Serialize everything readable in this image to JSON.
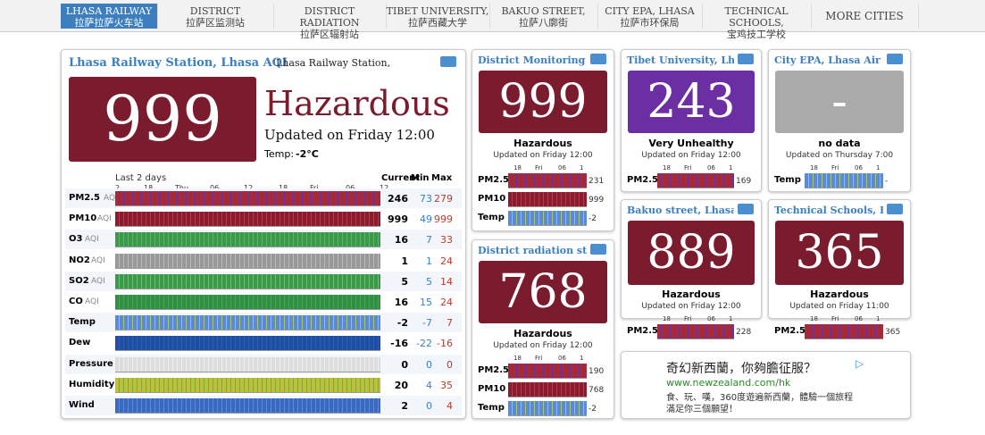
{
  "nav": [
    {
      "line1": "LHASA RAILWAY",
      "line2": "拉萨拉萨火车站"
    },
    {
      "line1": "DISTRICT",
      "line2": "拉萨区监测站"
    },
    {
      "line1": "DISTRICT RADIATION",
      "line2": "拉萨区辐射站"
    },
    {
      "line1": "TIBET UNIVERSITY,",
      "line2": "拉萨西藏大学"
    },
    {
      "line1": "BAKUO STREET,",
      "line2": "拉萨八廓街"
    },
    {
      "line1": "CITY EPA, LHASA",
      "line2": "拉萨市环保局"
    },
    {
      "line1": "TECHNICAL SCHOOLS,",
      "line2": "宝鸡技工学校"
    },
    {
      "line1": "MORE CITIES"
    }
  ],
  "main": {
    "title": "Lhasa Railway Station, Lhasa AQI",
    "subtitle": "Lhasa Railway Station, Lh",
    "aqi": "999",
    "level": "Hazardous",
    "color": "#7b1c2e",
    "updated": "Updated on Friday 12:00",
    "temp_label": "Temp:",
    "temp_value": "-2°C",
    "chart_caption": "Last 2 days",
    "time_labels": [
      "2",
      "18",
      "Thu",
      "06",
      "12",
      "18",
      "Fri",
      "06",
      "12"
    ],
    "columns": [
      "Current",
      "Min",
      "Max"
    ],
    "rows": [
      {
        "name": "PM2.5",
        "unit": "AQI",
        "current": "246",
        "min": "73",
        "max": "279"
      },
      {
        "name": "PM10",
        "unit": "AQI",
        "current": "999",
        "min": "49",
        "max": "999"
      },
      {
        "name": "O3",
        "unit": "AQI",
        "current": "16",
        "min": "7",
        "max": "33"
      },
      {
        "name": "NO2",
        "unit": "AQI",
        "current": "1",
        "min": "1",
        "max": "24"
      },
      {
        "name": "SO2",
        "unit": "AQI",
        "current": "5",
        "min": "5",
        "max": "14"
      },
      {
        "name": "CO",
        "unit": "AQI",
        "current": "16",
        "min": "15",
        "max": "24"
      },
      {
        "name": "Temp",
        "current": "-2",
        "min": "-7",
        "max": "7"
      },
      {
        "name": "Dew",
        "current": "-16",
        "min": "-22",
        "max": "-16"
      },
      {
        "name": "Pressure",
        "current": "0",
        "min": "0",
        "max": "0"
      },
      {
        "name": "Humidity",
        "current": "20",
        "min": "4",
        "max": "35"
      },
      {
        "name": "Wind",
        "current": "2",
        "min": "0",
        "max": "4"
      }
    ]
  },
  "cards": [
    {
      "title": "District Monitoring St",
      "aqi": "999",
      "level": "Hazardous",
      "color": "#7b1c2e",
      "updated": "Updated on Friday 12:00",
      "time_labels": [
        "18",
        "Fri",
        "06",
        "1"
      ],
      "rows": [
        {
          "label": "PM2.5",
          "value": "231"
        },
        {
          "label": "PM10",
          "value": "999"
        },
        {
          "label": "Temp",
          "value": "-2"
        }
      ]
    },
    {
      "title": "District radiation stat",
      "aqi": "768",
      "level": "Hazardous",
      "color": "#7b1c2e",
      "updated": "Updated on Friday 12:00",
      "time_labels": [
        "18",
        "Fri",
        "06",
        "1"
      ],
      "rows": [
        {
          "label": "PM2.5",
          "value": "190"
        },
        {
          "label": "PM10",
          "value": "768"
        },
        {
          "label": "Temp",
          "value": "-2"
        }
      ]
    },
    {
      "title": "Tibet University, Lhas",
      "aqi": "243",
      "level": "Very Unhealthy",
      "color": "#6b2fa3",
      "updated": "Updated on Friday 12:00",
      "time_labels": [
        "18",
        "Fri",
        "06",
        "1"
      ],
      "rows": [
        {
          "label": "PM2.5",
          "value": "169"
        }
      ]
    },
    {
      "title": "City EPA, Lhasa Air Qua",
      "aqi": "-",
      "level": "no data",
      "color": "#aaaaaa",
      "updated": "Updated on Thursday 7:00",
      "time_labels": [
        "18",
        "Fri",
        "06",
        "1"
      ],
      "rows": [
        {
          "label": "Temp",
          "value": "-"
        }
      ]
    },
    {
      "title": "Bakuo street, Lhasa Ai",
      "aqi": "889",
      "level": "Hazardous",
      "color": "#7b1c2e",
      "updated": "Updated on Friday 12:00",
      "time_labels": [
        "18",
        "Fri",
        "06",
        "1"
      ],
      "rows": [
        {
          "label": "PM2.5",
          "value": "228"
        }
      ]
    },
    {
      "title": "Technical Schools, Bao",
      "aqi": "365",
      "level": "Hazardous",
      "color": "#7b1c2e",
      "updated": "Updated on Friday 11:00",
      "time_labels": [
        "18",
        "Fri",
        "06",
        "1"
      ],
      "rows": [
        {
          "label": "PM2.5",
          "value": "365"
        }
      ]
    }
  ],
  "ad": {
    "headline": "奇幻新西蘭，你夠膽征服？",
    "url": "www.newzealand.com/hk",
    "text1": "食、玩、嘆，360度遊遍新西蘭，體驗一個旅程",
    "text2": "滿足你三個願望！"
  }
}
